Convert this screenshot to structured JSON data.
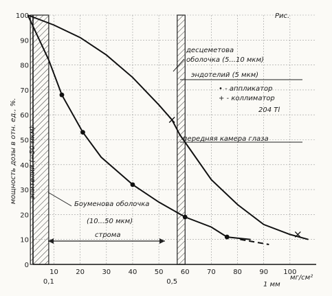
{
  "page": {
    "corner_label": "Рис.",
    "ylabel": "мощность дозы в отн. ед., %.",
    "xlabel_units": "мг/см²",
    "xlabel_mm": "1 мм"
  },
  "chart_data": {
    "type": "line",
    "xlim": [
      0,
      110
    ],
    "ylim": [
      0,
      100
    ],
    "x_ticks": [
      10,
      20,
      30,
      40,
      50,
      60,
      70,
      80,
      90,
      100
    ],
    "y_ticks": [
      0,
      10,
      20,
      30,
      40,
      50,
      60,
      70,
      80,
      90,
      100
    ],
    "mm_ticks": [
      {
        "x": 8,
        "label": "0,1"
      },
      {
        "x": 55,
        "label": "0,5"
      }
    ],
    "series": [
      {
        "name": "аппликатор",
        "marker": "dot",
        "points": [
          [
            0,
            100
          ],
          [
            8,
            82
          ],
          [
            13,
            68
          ],
          [
            21,
            53
          ],
          [
            28,
            43
          ],
          [
            40,
            32
          ],
          [
            50,
            25
          ],
          [
            60,
            19
          ],
          [
            70,
            15
          ],
          [
            76,
            11
          ],
          [
            85,
            10
          ]
        ],
        "marked": [
          [
            13,
            68
          ],
          [
            21,
            53
          ],
          [
            40,
            32
          ],
          [
            60,
            19
          ],
          [
            76,
            11
          ]
        ],
        "dashed_from": 81,
        "dashed_to": 92
      },
      {
        "name": "коллиматор",
        "marker": "cross",
        "points": [
          [
            0,
            100
          ],
          [
            10,
            96
          ],
          [
            20,
            91
          ],
          [
            30,
            84
          ],
          [
            40,
            75
          ],
          [
            50,
            64
          ],
          [
            55,
            58
          ],
          [
            58,
            52
          ],
          [
            62,
            46
          ],
          [
            70,
            34
          ],
          [
            80,
            24
          ],
          [
            90,
            16
          ],
          [
            100,
            12
          ],
          [
            107,
            10
          ]
        ],
        "marked": [
          [
            55,
            58
          ],
          [
            103,
            12
          ]
        ]
      }
    ],
    "bands": [
      {
        "x0": 1,
        "x1": 8,
        "label": "эпителий (~50 мкм)"
      },
      {
        "x0": 57,
        "x1": 60,
        "label": "десцеметова оболочка (5...10 мкм)"
      }
    ],
    "annotations": {
      "descemet": "десцеметова оболочка (5...10 мкм)",
      "endothelium": "эндотелий (5 мкм)",
      "legend_dot": "• - аппликатор",
      "legend_cross": "+ - коллиматор",
      "source": "204 Tl",
      "chamber": "передняя камера глаза",
      "bowman_1": "Боуменова оболочка",
      "bowman_2": "(10...50 мкм)",
      "stroma": "строма",
      "epithelium": "эпителий (~50 мкм)"
    }
  }
}
